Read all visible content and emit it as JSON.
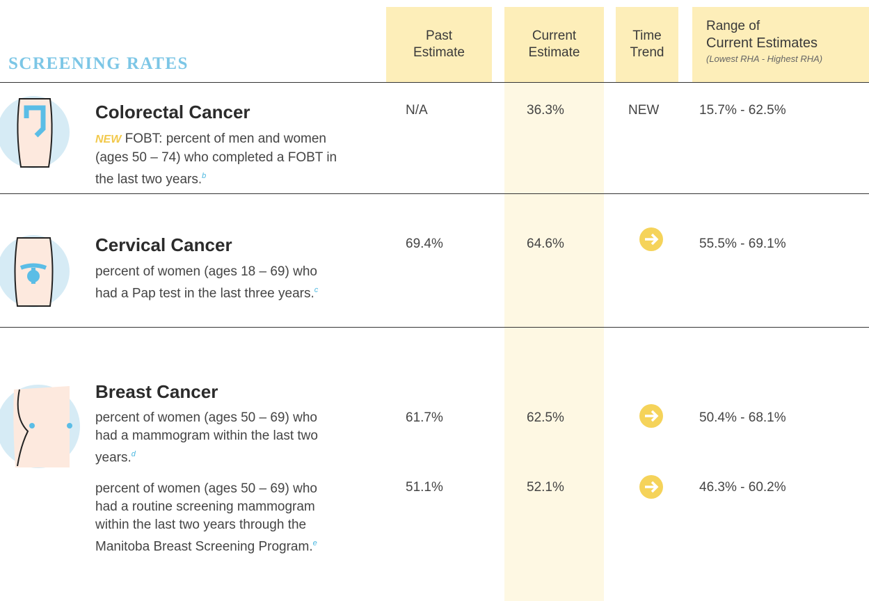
{
  "header": {
    "title": "SCREENING RATES",
    "columns": [
      {
        "lines": [
          "Past",
          "Estimate"
        ]
      },
      {
        "lines": [
          "Current",
          "Estimate"
        ]
      },
      {
        "lines": [
          "Time",
          "Trend"
        ]
      },
      {
        "lines": [
          "Range of",
          "Current Estimates"
        ],
        "note": "(Lowest RHA - Highest RHA)"
      }
    ]
  },
  "sections": [
    {
      "title": "Colorectal Cancer",
      "rows": [
        {
          "flag": "NEW",
          "description": "FOBT: percent of men and women (ages 50 – 74) who completed a FOBT in the last two years.",
          "footnote": "b",
          "past": "N/A",
          "current": "36.3%",
          "trend": "NEW",
          "range": "15.7% - 62.5%"
        }
      ]
    },
    {
      "title": "Cervical Cancer",
      "rows": [
        {
          "description": "percent of women (ages 18 – 69) who had a Pap test in the last three years.",
          "footnote": "c",
          "past": "69.4%",
          "current": "64.6%",
          "range": "55.5% - 69.1%"
        }
      ]
    },
    {
      "title": "Breast Cancer",
      "rows": [
        {
          "description": "percent of women (ages 50 – 69) who had a mammogram within the last two years.",
          "footnote": "d",
          "past": "61.7%",
          "current": "62.5%",
          "range": "50.4% - 68.1%"
        },
        {
          "description": "percent of women (ages 50 – 69) who had a routine screening mammogram within the last two years through the Manitoba Breast Screening Program.",
          "footnote": "e",
          "past": "51.1%",
          "current": "52.1%",
          "range": "46.3% - 60.2%"
        }
      ]
    }
  ]
}
